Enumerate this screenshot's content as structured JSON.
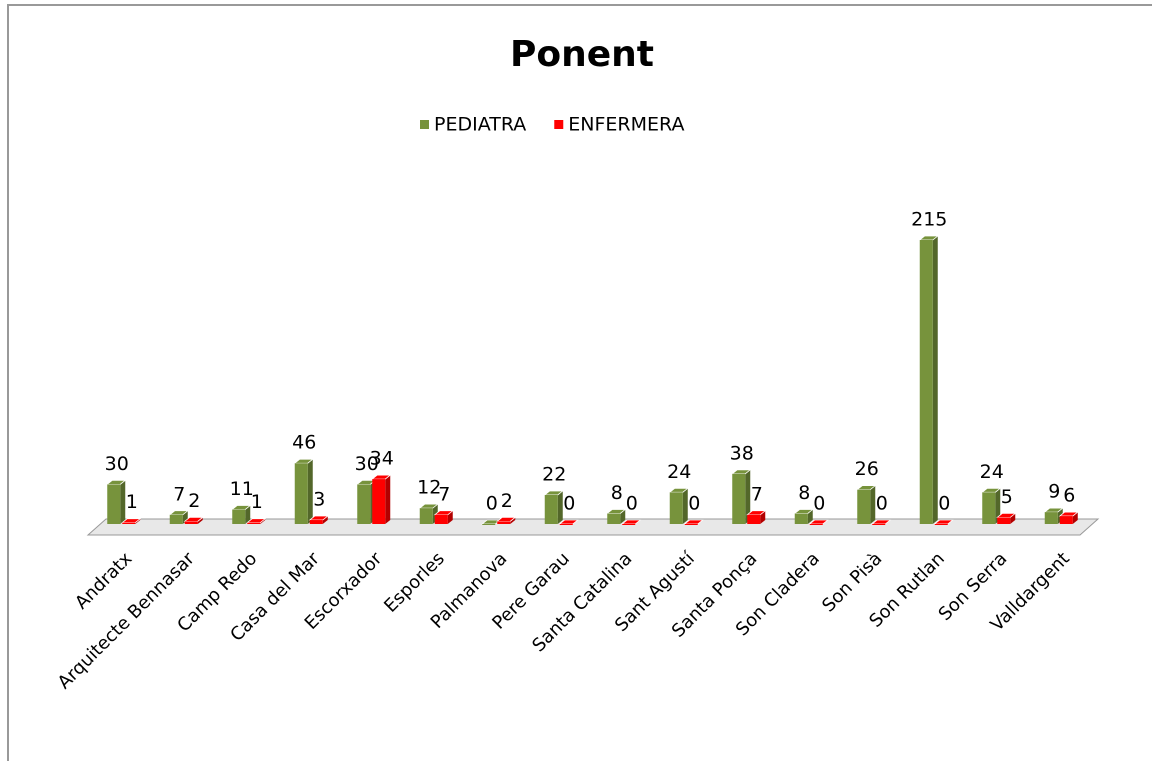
{
  "chart_data": {
    "type": "bar3d",
    "title": "Ponent",
    "categories": [
      "Andratx",
      "Arquitecte Bennasar",
      "Camp Redo",
      "Casa del Mar",
      "Escorxador",
      "Esporles",
      "Palmanova",
      "Pere Garau",
      "Santa Catalina",
      "Sant Agustí",
      "Santa Ponça",
      "Son Cladera",
      "Son Pisà",
      "Son Rutlan",
      "Son Serra",
      "Valldargent"
    ],
    "series": [
      {
        "name": "PEDIATRA",
        "color": "#77933c",
        "values": [
          30,
          7,
          11,
          46,
          30,
          12,
          0,
          22,
          8,
          24,
          38,
          8,
          26,
          215,
          24,
          9
        ]
      },
      {
        "name": "ENFERMERA",
        "color": "#ff0000",
        "values": [
          1,
          2,
          1,
          3,
          34,
          7,
          2,
          0,
          0,
          0,
          7,
          0,
          0,
          0,
          5,
          6
        ]
      }
    ],
    "ylim": [
      0,
      215
    ],
    "legend": "top"
  }
}
